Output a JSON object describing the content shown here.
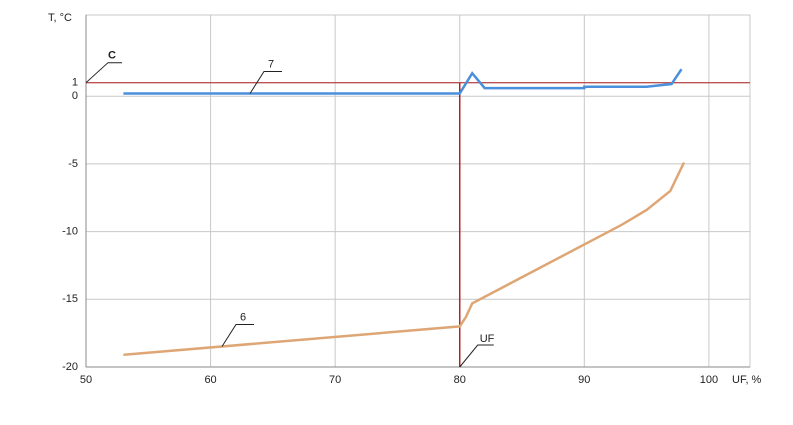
{
  "chart_data": {
    "type": "line",
    "x_label": "UF, %",
    "y_label": "T, °C",
    "xlim": [
      50,
      103.3
    ],
    "xticks": [
      50,
      60,
      70,
      80,
      90,
      100
    ],
    "ylim": [
      -20,
      6
    ],
    "yticks": [
      -20,
      -15,
      -10,
      -5,
      0,
      1
    ],
    "grid": true,
    "series": [
      {
        "name": "7",
        "color": "#4a8fdb",
        "x": [
          53,
          80,
          81,
          82,
          90,
          90,
          95,
          96,
          97,
          97.8
        ],
        "values": [
          0.2,
          0.2,
          1.7,
          0.6,
          0.6,
          0.7,
          0.7,
          0.8,
          0.9,
          2.0
        ]
      },
      {
        "name": "6",
        "color": "#dea674",
        "x": [
          53,
          80,
          80.5,
          81,
          93,
          95,
          96.9,
          98
        ],
        "values": [
          -19.1,
          -17,
          -16.3,
          -15.3,
          -9.5,
          -8.4,
          -7,
          -4.9
        ]
      }
    ],
    "reference_lines": [
      {
        "label": "C",
        "y": 1,
        "color": "#b22222"
      },
      {
        "label": "UF",
        "x": 80,
        "color": "#b22222"
      }
    ]
  }
}
